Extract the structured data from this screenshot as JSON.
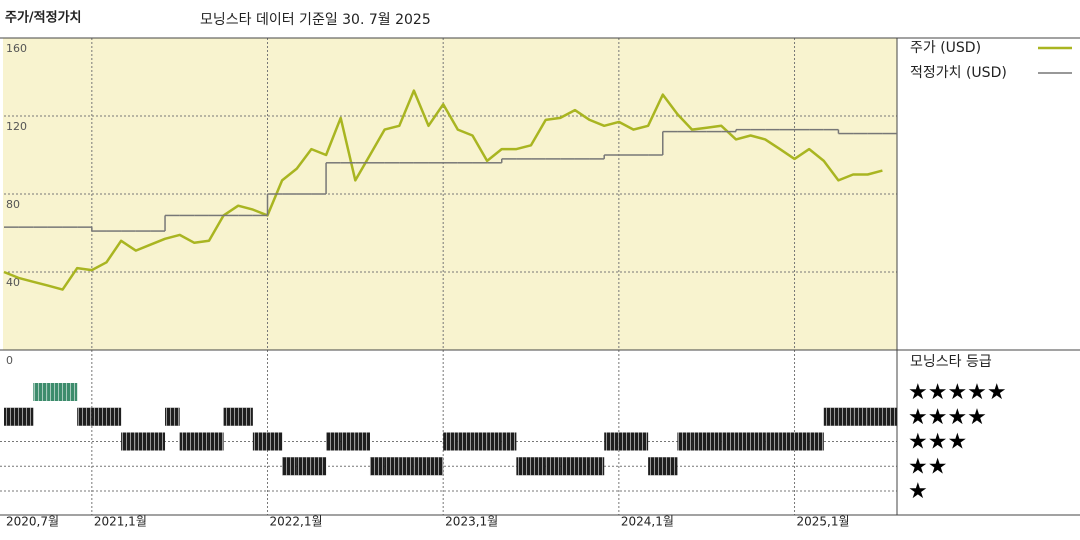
{
  "chart_data": {
    "type": "line",
    "title": "주가/적정가치",
    "subtitle": "모닝스타 데이터 기준일 30. 7월 2025",
    "x": [
      "2020-07",
      "2020-08",
      "2020-09",
      "2020-10",
      "2020-11",
      "2020-12",
      "2021-01",
      "2021-02",
      "2021-03",
      "2021-04",
      "2021-05",
      "2021-06",
      "2021-07",
      "2021-08",
      "2021-09",
      "2021-10",
      "2021-11",
      "2021-12",
      "2022-01",
      "2022-02",
      "2022-03",
      "2022-04",
      "2022-05",
      "2022-06",
      "2022-07",
      "2022-08",
      "2022-09",
      "2022-10",
      "2022-11",
      "2022-12",
      "2023-01",
      "2023-02",
      "2023-03",
      "2023-04",
      "2023-05",
      "2023-06",
      "2023-07",
      "2023-08",
      "2023-09",
      "2023-10",
      "2023-11",
      "2023-12",
      "2024-01",
      "2024-02",
      "2024-03",
      "2024-04",
      "2024-05",
      "2024-06",
      "2024-07",
      "2024-08",
      "2024-09",
      "2024-10",
      "2024-11",
      "2024-12",
      "2025-01",
      "2025-02",
      "2025-03",
      "2025-04",
      "2025-05",
      "2025-06",
      "2025-07"
    ],
    "series": [
      {
        "name": "주가 (USD)",
        "color": "#a9b521",
        "values": [
          40,
          37,
          35,
          33,
          31,
          42,
          41,
          45,
          56,
          51,
          54,
          57,
          59,
          55,
          56,
          69,
          74,
          72,
          69,
          87,
          93,
          103,
          100,
          119,
          87,
          100,
          113,
          115,
          133,
          115,
          126,
          113,
          110,
          97,
          103,
          103,
          105,
          118,
          119,
          123,
          118,
          115,
          117,
          113,
          115,
          131,
          121,
          113,
          114,
          115,
          108,
          110,
          108,
          103,
          98,
          103,
          97,
          87,
          90,
          90,
          92
        ]
      },
      {
        "name": "적정가치 (USD)",
        "color": "#777777",
        "step": true,
        "values": [
          63,
          63,
          63,
          63,
          63,
          63,
          61,
          61,
          61,
          61,
          61,
          69,
          69,
          69,
          69,
          69,
          69,
          69,
          80,
          80,
          80,
          80,
          96,
          96,
          96,
          96,
          96,
          96,
          96,
          96,
          96,
          96,
          96,
          96,
          98,
          98,
          98,
          98,
          98,
          98,
          98,
          100,
          100,
          100,
          100,
          112,
          112,
          112,
          112,
          112,
          113,
          113,
          113,
          113,
          113,
          113,
          113,
          111,
          111,
          111,
          111
        ]
      }
    ],
    "ylim": [
      0,
      160
    ],
    "yticks": [
      0,
      40,
      80,
      120,
      160
    ],
    "xlim": [
      "2020-07",
      "2025-08"
    ],
    "xticks": [
      {
        "value": "2020-07",
        "label": "2020,7월"
      },
      {
        "value": "2021-01",
        "label": "2021,1월"
      },
      {
        "value": "2022-01",
        "label": "2022,1월"
      },
      {
        "value": "2023-01",
        "label": "2023,1월"
      },
      {
        "value": "2024-01",
        "label": "2024,1월"
      },
      {
        "value": "2025-01",
        "label": "2025,1월"
      }
    ],
    "grid": true,
    "legend": "right",
    "rating": {
      "title": "모닝스타 등급",
      "levels": [
        5,
        4,
        3,
        2,
        1
      ],
      "level_labels": [
        "★★★★★",
        "★★★★",
        "★★★",
        "★★",
        "★"
      ],
      "colors": [
        "#1e1e1e",
        "#1e1e1e",
        "#1e1e1e",
        "#1e1e1e",
        "#3d8c6c"
      ],
      "values": [
        4,
        4,
        5,
        5,
        5,
        4,
        4,
        4,
        3,
        3,
        3,
        4,
        3,
        3,
        3,
        4,
        4,
        3,
        3,
        2,
        2,
        2,
        3,
        3,
        3,
        2,
        2,
        2,
        2,
        2,
        3,
        3,
        3,
        3,
        3,
        2,
        2,
        2,
        2,
        2,
        2,
        3,
        3,
        3,
        2,
        2,
        3,
        3,
        3,
        3,
        3,
        3,
        3,
        3,
        3,
        3,
        4,
        4,
        4,
        4,
        4
      ]
    }
  }
}
